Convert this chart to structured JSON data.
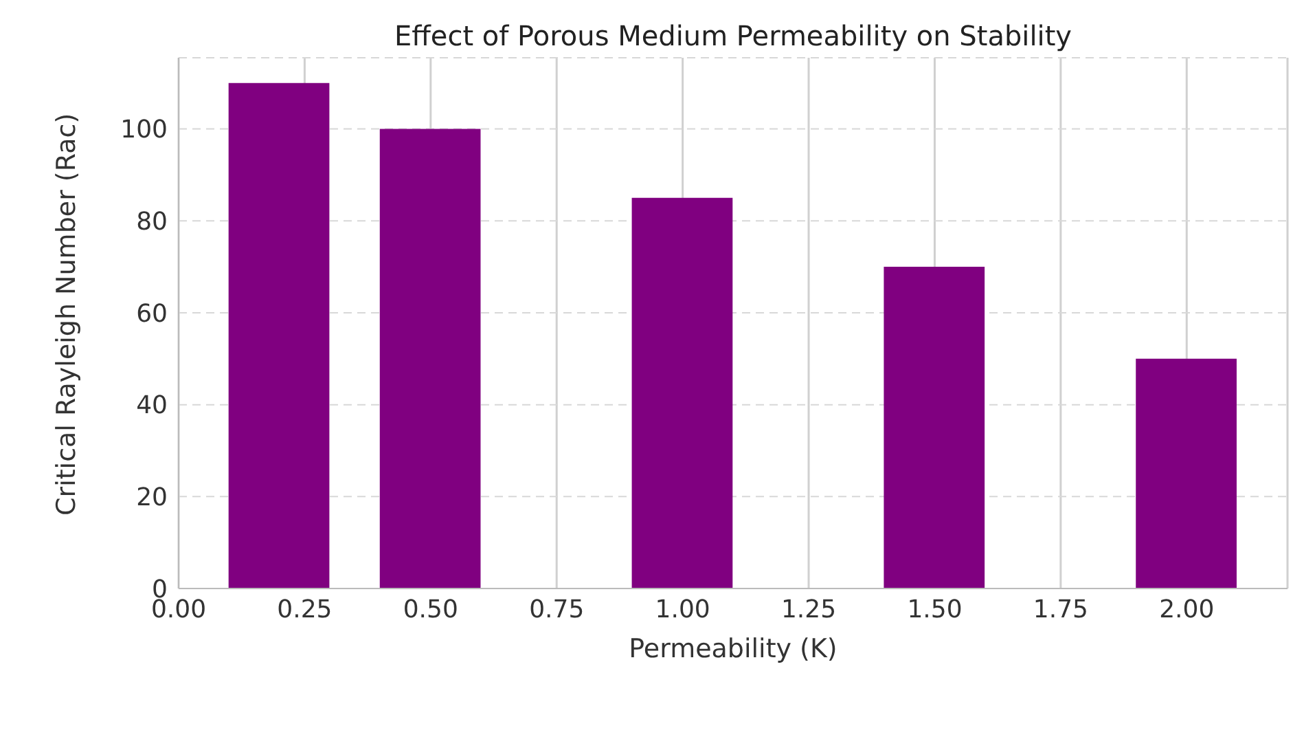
{
  "chart_data": {
    "type": "bar",
    "title": "Effect of Porous Medium Permeability on Stability",
    "xlabel": "Permeability (K)",
    "ylabel": "Critical Rayleigh Number (Rac)",
    "x": [
      0.2,
      0.5,
      1.0,
      1.5,
      2.0
    ],
    "values": [
      110,
      100,
      85,
      70,
      50
    ],
    "color": "#800080",
    "xlim": [
      0,
      2.2
    ],
    "xticks": [
      {
        "value": 0,
        "label": "0.00"
      },
      {
        "value": 0.25,
        "label": "0.25"
      },
      {
        "value": 0.5,
        "label": "0.50"
      },
      {
        "value": 0.75,
        "label": "0.75"
      },
      {
        "value": 1,
        "label": "1.00"
      },
      {
        "value": 1.25,
        "label": "1.25"
      },
      {
        "value": 1.5,
        "label": "1.50"
      },
      {
        "value": 1.75,
        "label": "1.75"
      },
      {
        "value": 2,
        "label": "2.00"
      }
    ],
    "ylim": [
      0,
      115.5
    ],
    "yticks": [
      0,
      20,
      40,
      60,
      80,
      100
    ],
    "grid": true
  }
}
